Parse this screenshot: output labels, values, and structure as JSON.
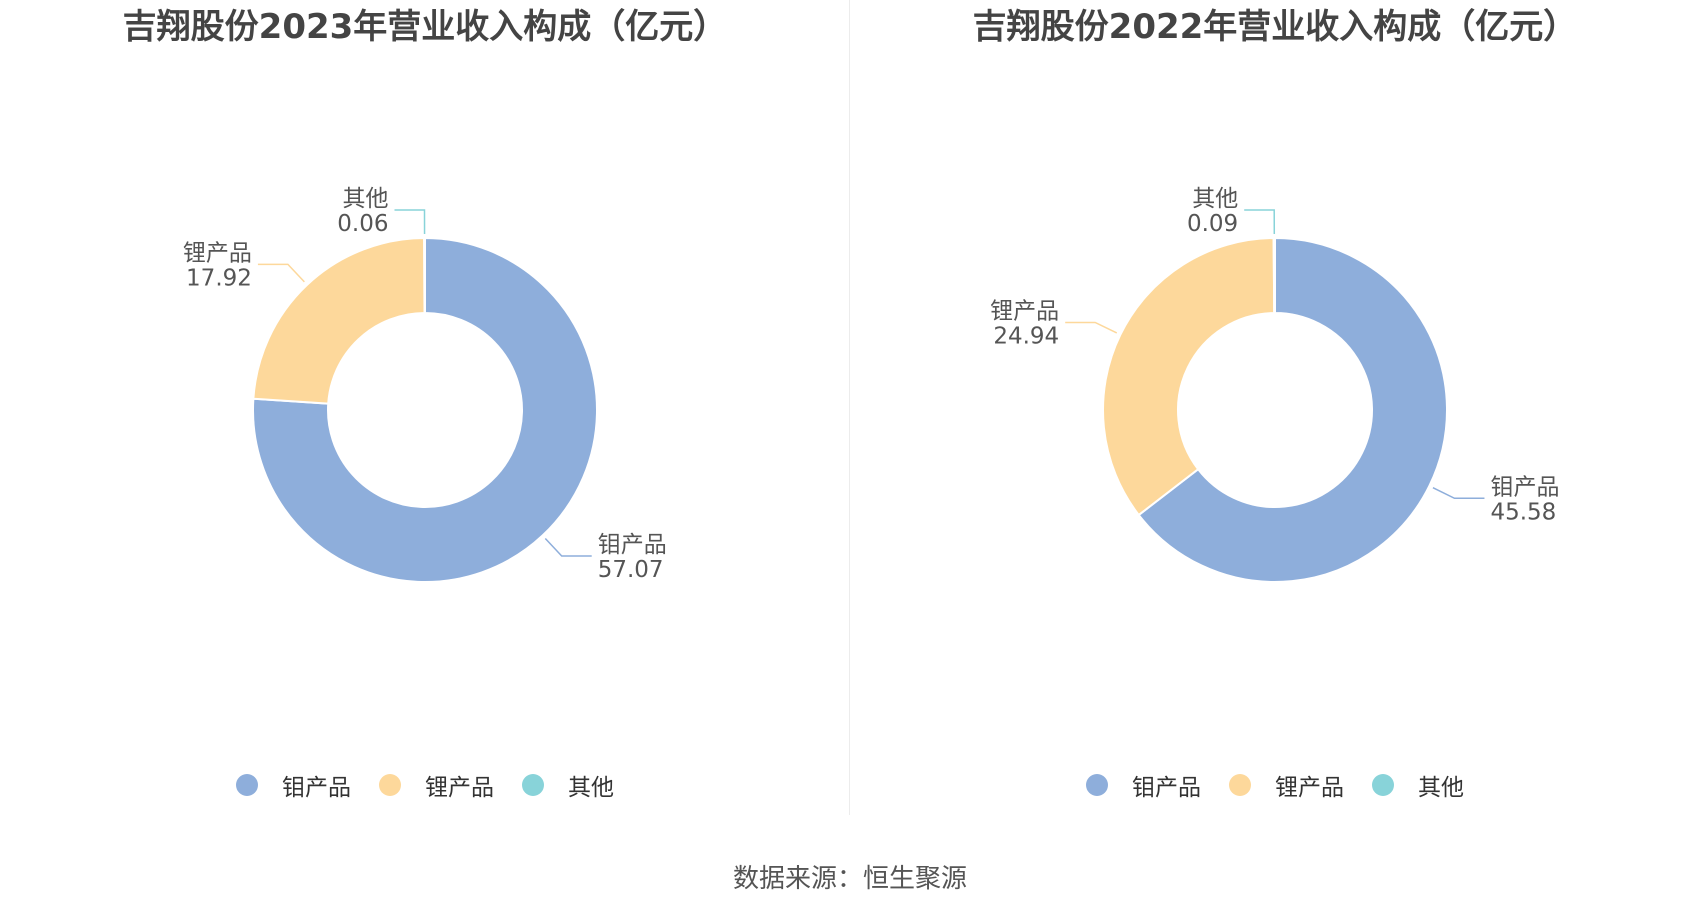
{
  "colors": {
    "series": [
      "#8eaedb",
      "#fdd89b",
      "#88d3d9"
    ],
    "label_text": "#555555"
  },
  "source": "数据来源：恒生聚源",
  "chart_data": [
    {
      "type": "pie",
      "title": "吉翔股份2023年营业收入构成（亿元）",
      "categories": [
        "钼产品",
        "锂产品",
        "其他"
      ],
      "values": [
        57.07,
        17.92,
        0.06
      ],
      "labels": [
        "57.07",
        "17.92",
        "0.06"
      ],
      "legend": "bottom"
    },
    {
      "type": "pie",
      "title": "吉翔股份2022年营业收入构成（亿元）",
      "categories": [
        "钼产品",
        "锂产品",
        "其他"
      ],
      "values": [
        45.58,
        24.94,
        0.09
      ],
      "labels": [
        "45.58",
        "24.94",
        "0.09"
      ],
      "legend": "bottom"
    }
  ]
}
